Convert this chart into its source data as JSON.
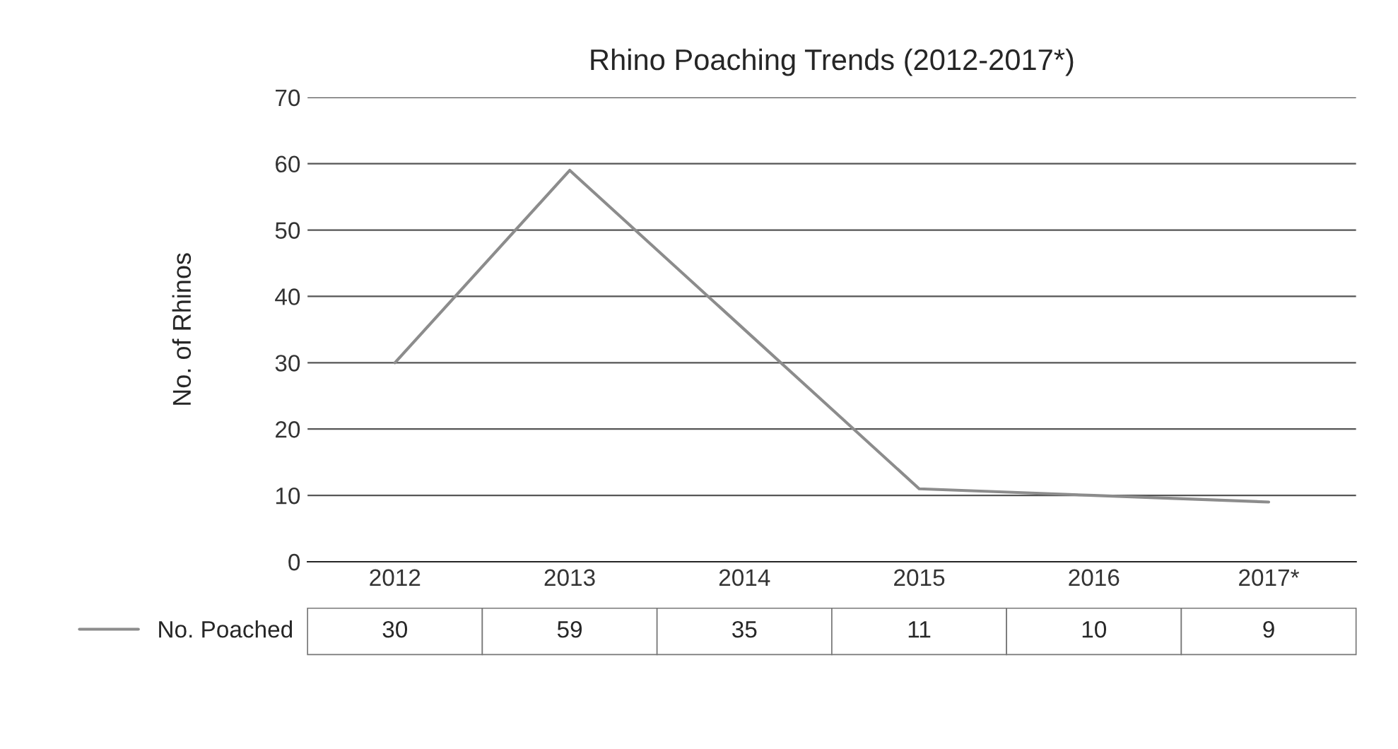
{
  "chart_data": {
    "type": "line",
    "title": "Rhino Poaching Trends (2012-2017*)",
    "ylabel": "No. of Rhinos",
    "categories": [
      "2012",
      "2013",
      "2014",
      "2015",
      "2016",
      "2017*"
    ],
    "series": [
      {
        "name": "No. Poached",
        "color": "#8c8c8c",
        "values": [
          30,
          59,
          35,
          11,
          10,
          9
        ]
      }
    ],
    "ylim": [
      0,
      70
    ],
    "yticks": [
      0,
      10,
      20,
      30,
      40,
      50,
      60,
      70
    ],
    "grid": "y",
    "legend": "bottom left",
    "data_labels": true,
    "marker": "none",
    "line_style": "solid"
  }
}
